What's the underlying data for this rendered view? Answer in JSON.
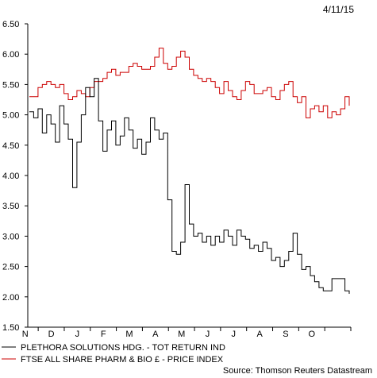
{
  "chart_data": {
    "type": "line",
    "date": "4/11/15",
    "source": "Source: Thomson Reuters Datastream",
    "ylim": [
      1.5,
      6.5
    ],
    "yticks": [
      "1.50",
      "2.00",
      "2.50",
      "3.00",
      "3.50",
      "4.00",
      "4.50",
      "5.00",
      "5.50",
      "6.00",
      "6.50"
    ],
    "xtick_labels": [
      "N",
      "D",
      "J",
      "F",
      "M",
      "A",
      "M",
      "J",
      "J",
      "A",
      "S",
      "O"
    ],
    "grid": false,
    "legend_position": "bottom",
    "series": [
      {
        "name": "PLETHORA SOLUTIONS HDG. - TOT RETURN IND",
        "color": "#000000",
        "values": [
          5.05,
          4.95,
          5.1,
          4.7,
          5.0,
          4.85,
          4.55,
          5.15,
          4.85,
          4.6,
          3.8,
          4.55,
          5.0,
          5.45,
          5.3,
          5.6,
          4.9,
          4.4,
          4.75,
          4.9,
          4.5,
          4.65,
          4.95,
          4.75,
          4.45,
          4.6,
          4.35,
          4.55,
          4.95,
          4.75,
          4.6,
          4.7,
          3.6,
          2.75,
          2.7,
          2.9,
          3.85,
          3.2,
          3.0,
          3.05,
          2.9,
          3.0,
          2.85,
          3.0,
          2.9,
          3.1,
          3.0,
          2.85,
          3.1,
          3.0,
          2.95,
          2.8,
          2.85,
          2.75,
          2.9,
          2.8,
          2.6,
          2.65,
          2.5,
          2.6,
          2.75,
          3.05,
          2.7,
          2.45,
          2.5,
          2.35,
          2.25,
          2.15,
          2.1,
          2.1,
          2.3,
          2.3,
          2.3,
          2.1,
          2.05
        ]
      },
      {
        "name": "FTSE ALL SHARE PHARM & BIO £ - PRICE INDEX",
        "color": "#cc0000",
        "values": [
          5.3,
          5.3,
          5.45,
          5.5,
          5.55,
          5.5,
          5.45,
          5.5,
          5.35,
          5.25,
          5.3,
          5.4,
          5.35,
          5.3,
          5.45,
          5.55,
          5.55,
          5.6,
          5.7,
          5.75,
          5.65,
          5.7,
          5.7,
          5.8,
          5.85,
          5.8,
          5.75,
          5.75,
          5.8,
          5.95,
          6.1,
          5.85,
          5.75,
          5.8,
          5.95,
          6.05,
          5.95,
          5.75,
          5.65,
          5.6,
          5.55,
          5.6,
          5.55,
          5.45,
          5.35,
          5.55,
          5.4,
          5.3,
          5.25,
          5.4,
          5.55,
          5.5,
          5.35,
          5.35,
          5.4,
          5.45,
          5.3,
          5.25,
          5.4,
          5.5,
          5.55,
          5.3,
          5.2,
          5.3,
          4.95,
          5.1,
          5.15,
          5.05,
          5.15,
          4.95,
          5.05,
          5.0,
          5.1,
          5.3,
          5.15
        ]
      }
    ]
  }
}
